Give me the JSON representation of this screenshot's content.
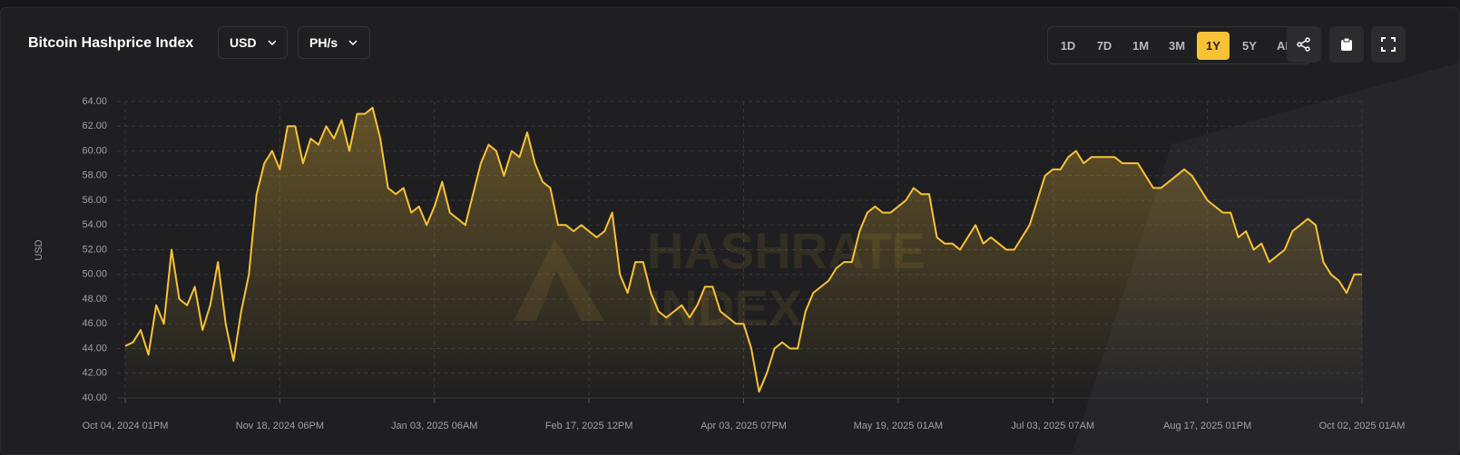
{
  "header": {
    "title": "Bitcoin Hashprice Index",
    "currency": "USD",
    "unit": "PH/s",
    "ranges": [
      "1D",
      "7D",
      "1M",
      "3M",
      "1Y",
      "5Y",
      "ALL"
    ],
    "active_range": 4
  },
  "chart_data": {
    "type": "area",
    "ylabel": "USD",
    "watermark": [
      "HASHRATE",
      "INDEX"
    ],
    "grid": true,
    "series": [
      {
        "name": "Bitcoin Hashprice Index",
        "color": "#f7c236",
        "values": [
          44.2,
          44.5,
          45.5,
          43.5,
          47.5,
          46,
          52,
          48,
          47.5,
          49,
          45.5,
          47.5,
          51,
          46,
          43,
          47,
          50,
          56.5,
          59,
          60,
          58.5,
          62,
          62,
          59,
          61,
          60.5,
          62,
          61,
          62.5,
          60,
          63,
          63,
          63.5,
          61,
          57,
          56.5,
          57,
          55,
          55.5,
          54,
          55.5,
          57.5,
          55,
          54.5,
          54,
          56.5,
          59,
          60.5,
          60,
          58,
          60,
          59.5,
          61.5,
          59,
          57.5,
          57,
          54,
          54,
          53.5,
          54,
          53.5,
          53,
          53.5,
          55,
          50,
          48.5,
          51,
          51,
          48.5,
          47,
          46.5,
          47,
          47.5,
          46.5,
          47.5,
          49,
          49,
          47,
          46.5,
          46,
          46,
          44,
          40.5,
          42,
          44,
          44.5,
          44,
          44,
          47,
          48.5,
          49,
          49.5,
          50.5,
          51,
          51,
          53.5,
          55,
          55.5,
          55,
          55,
          55.5,
          56,
          57,
          56.5,
          56.5,
          53,
          52.5,
          52.5,
          52,
          53,
          54,
          52.5,
          53,
          52.5,
          52,
          52,
          53,
          54,
          56,
          58,
          58.5,
          58.5,
          59.5,
          60,
          59,
          59.5,
          59.5,
          59.5,
          59.5,
          59,
          59,
          59,
          58,
          57,
          57,
          57.5,
          58,
          58.5,
          58,
          57,
          56,
          55.5,
          55,
          55,
          53,
          53.5,
          52,
          52.5,
          51,
          51.5,
          52,
          53.5,
          54,
          54.5,
          54,
          51,
          50,
          49.5,
          48.5,
          50,
          50
        ]
      }
    ],
    "xlim": [
      0,
      160
    ],
    "xticks": [
      {
        "value": 0,
        "label": "Oct 04, 2024 01PM"
      },
      {
        "value": 20,
        "label": "Nov 18, 2024 06PM"
      },
      {
        "value": 40,
        "label": "Jan 03, 2025 06AM"
      },
      {
        "value": 60,
        "label": "Feb 17, 2025 12PM"
      },
      {
        "value": 80,
        "label": "Apr 03, 2025 07PM"
      },
      {
        "value": 100,
        "label": "May 19, 2025 01AM"
      },
      {
        "value": 120,
        "label": "Jul 03, 2025 07AM"
      },
      {
        "value": 140,
        "label": "Aug 17, 2025 01PM"
      },
      {
        "value": 160,
        "label": "Oct 02, 2025 01AM"
      }
    ],
    "ylim": [
      40,
      64
    ],
    "yticks": [
      {
        "value": 40,
        "label": "40.00"
      },
      {
        "value": 42,
        "label": "42.00"
      },
      {
        "value": 44,
        "label": "44.00"
      },
      {
        "value": 46,
        "label": "46.00"
      },
      {
        "value": 48,
        "label": "48.00"
      },
      {
        "value": 50,
        "label": "50.00"
      },
      {
        "value": 52,
        "label": "52.00"
      },
      {
        "value": 54,
        "label": "54.00"
      },
      {
        "value": 56,
        "label": "56.00"
      },
      {
        "value": 58,
        "label": "58.00"
      },
      {
        "value": 60,
        "label": "60.00"
      },
      {
        "value": 62,
        "label": "62.00"
      },
      {
        "value": 64,
        "label": "64.00"
      }
    ]
  }
}
